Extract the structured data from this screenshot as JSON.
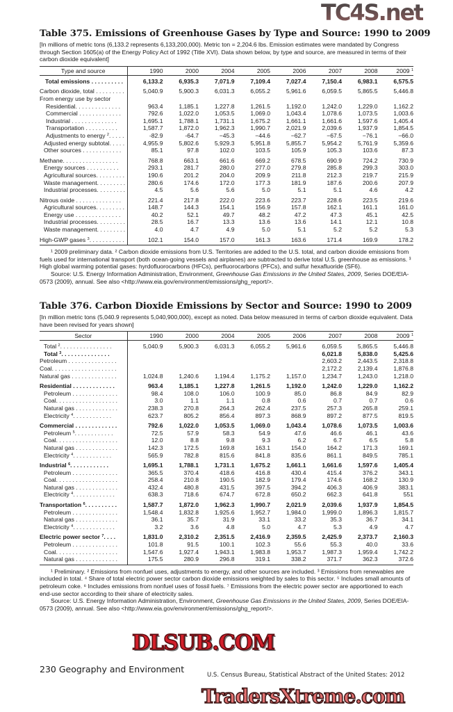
{
  "table375": {
    "title": "Table 375. Emissions of Greenhouse Gases by Type and Source: 1990 to 2009",
    "intro": "[In millions of metric tons (6,133.2 represents 6,133,200,000). Metric ton = 2,204.6 lbs. Emission estimates were mandated by Congress through Section 1605(a) of the Energy Policy Act of 1992 (Title XVI). Data shown below, by type and source, are measured in terms of their carbon dioxide equivalent]",
    "header_label": "Type and source",
    "years": [
      "1990",
      "2000",
      "2004",
      "2005",
      "2006",
      "2007",
      "2008",
      "2009"
    ],
    "year_note": "1",
    "rows": [
      {
        "label": "Total emissions . . . . . . . . . .",
        "sup": "",
        "bold": true,
        "indent": "in0b",
        "values": [
          "6,133.2",
          "6,935.3",
          "7,071.9",
          "7,109.4",
          "7,027.4",
          "7,150.4",
          "6,983.1",
          "6,575.5"
        ]
      },
      {
        "label": "Carbon dioxide, total . . . . . . . . .",
        "sup": "",
        "gap": true,
        "values": [
          "5,040.9",
          "5,900.3",
          "6,031.3",
          "6,055.2",
          "5,961.6",
          "6,059.5",
          "5,865.5",
          "5,446.8"
        ]
      },
      {
        "label": "From energy use by sector",
        "sup": "",
        "values": [
          "",
          "",
          "",
          "",
          "",
          "",
          "",
          ""
        ]
      },
      {
        "label": "Residential. . . . . . . . . . . . . .",
        "sup": "",
        "indent": "in2",
        "values": [
          "963.4",
          "1,185.1",
          "1,227.8",
          "1,261.5",
          "1,192.0",
          "1,242.0",
          "1,229.0",
          "1,162.2"
        ]
      },
      {
        "label": "Commercial . . . . . . . . . . . . .",
        "sup": "",
        "indent": "in2",
        "values": [
          "792.6",
          "1,022.0",
          "1,053.5",
          "1,069.0",
          "1,043.4",
          "1,078.6",
          "1,073.5",
          "1,003.6"
        ]
      },
      {
        "label": "Industrial . . . . . . . . . . . . . .",
        "sup": "",
        "indent": "in2",
        "values": [
          "1,695.1",
          "1,788.1",
          "1,731.1",
          "1,675.2",
          "1,661.1",
          "1,661.6",
          "1,597.6",
          "1,405.4"
        ]
      },
      {
        "label": "Transportation . . . . . . . . . .",
        "sup": "",
        "indent": "in2",
        "values": [
          "1,587.7",
          "1,872.0",
          "1,962.3",
          "1,990.7",
          "2,021.9",
          "2,039.6",
          "1,937.9",
          "1,854.5"
        ]
      },
      {
        "label": "Adjustments to energy",
        "sup": "2",
        "suffix": ". . . . .",
        "indent": "in2",
        "values": [
          "-82.9",
          "-64.7",
          "−45.3",
          "−44.6",
          "−62.7",
          "−67.5",
          "−76.1",
          "−66.0"
        ]
      },
      {
        "label": "Adjusted energy subtotal. . . . .",
        "sup": "",
        "indent": "in1",
        "values": [
          "4,955.9",
          "5,802.6",
          "5,929.3",
          "5,951.8",
          "5,855.7",
          "5,954.2",
          "5,761.9",
          "5,359.6"
        ]
      },
      {
        "label": "Other sources . . . . . . . . . . . .",
        "sup": "",
        "indent": "in1",
        "values": [
          "85.1",
          "97.8",
          "102.0",
          "103.5",
          "105.9",
          "105.3",
          "103.6",
          "87.3"
        ]
      },
      {
        "label": "Methane. . . . . . . . . . . . . . . . .",
        "sup": "",
        "gap": true,
        "values": [
          "768.8",
          "663.1",
          "661.6",
          "669.2",
          "678.5",
          "690.9",
          "724.2",
          "730.9"
        ]
      },
      {
        "label": "Energy sources . . . . . . . . . .",
        "sup": "",
        "indent": "in1",
        "values": [
          "293.1",
          "281.7",
          "280.0",
          "277.0",
          "279.8",
          "285.8",
          "299.3",
          "303.0"
        ]
      },
      {
        "label": "Agricultural sources. . . . . . . . .",
        "sup": "",
        "indent": "in1",
        "values": [
          "190.6",
          "201.2",
          "204.0",
          "209.9",
          "211.8",
          "212.3",
          "219.7",
          "215.9"
        ]
      },
      {
        "label": "Waste management. . . . . . . . .",
        "sup": "",
        "indent": "in1",
        "values": [
          "280.6",
          "174.6",
          "172.0",
          "177.3",
          "181.9",
          "187.6",
          "200.6",
          "207.9"
        ]
      },
      {
        "label": "Industrial processes. . . . . . . . .",
        "sup": "",
        "indent": "in1",
        "values": [
          "4.5",
          "5.6",
          "5.6",
          "5.0",
          "5.1",
          "5.1",
          "4.6",
          "4.2"
        ]
      },
      {
        "label": "Nitrous oxide . . . . . . . . . . . . . .",
        "sup": "",
        "gap": true,
        "values": [
          "221.4",
          "217.8",
          "222.0",
          "223.6",
          "223.7",
          "228.6",
          "223.5",
          "219.6"
        ]
      },
      {
        "label": "Agricultural sources. . . . . . . . .",
        "sup": "",
        "indent": "in1",
        "values": [
          "148.7",
          "144.3",
          "154.1",
          "156.9",
          "157.8",
          "162.1",
          "161.1",
          "161.0"
        ]
      },
      {
        "label": "Energy use . . . . . . . . . . . . . .",
        "sup": "",
        "indent": "in1",
        "values": [
          "40.2",
          "52.1",
          "49.7",
          "48.2",
          "47.2",
          "47.3",
          "45.1",
          "42.5"
        ]
      },
      {
        "label": "Industrial processes. . . . . . . . .",
        "sup": "",
        "indent": "in1",
        "values": [
          "28.5",
          "16.7",
          "13.3",
          "13.6",
          "13.6",
          "14.1",
          "12.1",
          "10.8"
        ]
      },
      {
        "label": "Waste management. . . . . . . . .",
        "sup": "",
        "indent": "in1",
        "values": [
          "4.0",
          "4.7",
          "4.9",
          "5.0",
          "5.1",
          "5.2",
          "5.2",
          "5.3"
        ]
      },
      {
        "label": "High-GWP gases",
        "sup": "3",
        "suffix": ". . . . . . . . . . .",
        "gap": true,
        "values": [
          "102.1",
          "154.0",
          "157.0",
          "161.3",
          "163.6",
          "171.4",
          "169.9",
          "178.2"
        ]
      }
    ],
    "footnotes": "¹ 2009 preliminary data. ² Carbon dioxide emissions from U.S. Territories are added to the U.S. total, and carbon dioxide emissions from fuels used for international  transport (both ocean-going vessels and airplanes) are subtracted to derive total U.S. greenhouse as emissions. ³ High global warming potential gases: hyrdofluorocarbons (HFCs), perfluorocarbons (PFCs), and sulfur hexafluoride (SF6).",
    "source_prefix": "Source: U.S. Energy Information Administration, Environment, ",
    "source_title": "Greenhouse Gas Emissions in the United States, 2009",
    "source_suffix": ", Series DOE/EIA-0573 (2009), annual. See also <http://www.eia.gov/environment/emissions/ghg_report/>."
  },
  "table376": {
    "title": "Table 376. Carbon Dioxide Emissions by Sector and Source: 1990 to 2009",
    "intro": "[In million metric tons (5,040.9 represents 5,040,900,000), except as noted. Data below measured in terms of carbon dioxide equivalent. Data have been revised for years shown]",
    "header_label": "Sector",
    "years": [
      "1990",
      "2000",
      "2004",
      "2005",
      "2006",
      "2007",
      "2008",
      "2009"
    ],
    "year_note": "1",
    "rows": [
      {
        "label": "Total",
        "sup": "2",
        "suffix": ". . . . . . . . . . . . . . . .",
        "indent": "in1",
        "values": [
          "5,040.9",
          "5,900.3",
          "6,031.3",
          "6,055.2",
          "5,961.6",
          "6,059.5",
          "5,865.5",
          "5,446.8"
        ]
      },
      {
        "label": "Total",
        "sup": "3",
        "suffix": ". . . . . . . . . . . . . . .",
        "bold": true,
        "indent": "in1",
        "values": [
          "",
          "",
          "",
          "",
          "",
          "6,021.8",
          "5,838.0",
          "5,425.6"
        ]
      },
      {
        "label": "Petroleum . . . . . . . . . . . . . . .",
        "sup": "",
        "values": [
          "",
          "",
          "",
          "",
          "",
          "2,603.2",
          "2,443.5",
          "2,318.8"
        ]
      },
      {
        "label": "Coal. . . . . . . . . . . . . . . . . . . .",
        "sup": "",
        "values": [
          "",
          "",
          "",
          "",
          "",
          "2,172.2",
          "2,139.4",
          "1,876.8"
        ]
      },
      {
        "label": "Natural gas . . . . . . . . . . . . . .",
        "sup": "",
        "values": [
          "1,024.8",
          "1,240.6",
          "1,194.4",
          "1,175.2",
          "1,157.0",
          "1,234.7",
          "1,243.0",
          "1,218.0"
        ]
      },
      {
        "label": "Residential . . . . . . . . . . . . .",
        "sup": "",
        "bold": true,
        "gap": true,
        "values": [
          "963.4",
          "1,185.1",
          "1,227.8",
          "1,261.5",
          "1,192.0",
          "1,242.0",
          "1,229.0",
          "1,162.2"
        ]
      },
      {
        "label": "Petroleum . . . . . . . . . . . . . .",
        "sup": "",
        "indent": "in1",
        "values": [
          "98.4",
          "108.0",
          "106.0",
          "100.9",
          "85.0",
          "86.8",
          "84.9",
          "82.9"
        ]
      },
      {
        "label": "Coal. . . . . . . . . . . . . . . . . . .",
        "sup": "",
        "indent": "in1",
        "values": [
          "3.0",
          "1.1",
          "1.1",
          "0.8",
          "0.6",
          "0.7",
          "0.7",
          "0.6"
        ]
      },
      {
        "label": "Natural gas . . . . . . . . . . . . .",
        "sup": "",
        "indent": "in1",
        "values": [
          "238.3",
          "270.8",
          "264.3",
          "262.4",
          "237.5",
          "257.3",
          "265.8",
          "259.1"
        ]
      },
      {
        "label": "Electricity",
        "sup": "4",
        "suffix": ". . . . . . . . . . . .",
        "indent": "in1",
        "values": [
          "623.7",
          "805.2",
          "856.4",
          "897.3",
          "868.9",
          "897.2",
          "877.5",
          "819.5"
        ]
      },
      {
        "label": "Commercial . . . . . . . . . . . . .",
        "sup": "",
        "bold": true,
        "gap": true,
        "values": [
          "792.6",
          "1,022.0",
          "1,053.5",
          "1,069.0",
          "1,043.4",
          "1,078.6",
          "1,073.5",
          "1,003.6"
        ]
      },
      {
        "label": "Petroleum",
        "sup": "5",
        "suffix": ". . . . . . . . . . . .",
        "indent": "in1",
        "values": [
          "72.5",
          "57.9",
          "58.3",
          "54.9",
          "47.6",
          "46.6",
          "46.1",
          "43.6"
        ]
      },
      {
        "label": "Coal. . . . . . . . . . . . . . . . . . .",
        "sup": "",
        "indent": "in1",
        "values": [
          "12.0",
          "8.8",
          "9.8",
          "9.3",
          "6.2",
          "6.7",
          "6.5",
          "5.8"
        ]
      },
      {
        "label": "Natural gas . . . . . . . . . . . . .",
        "sup": "",
        "indent": "in1",
        "values": [
          "142.3",
          "172.5",
          "169.8",
          "163.1",
          "154.0",
          "164.2",
          "171.3",
          "169.1"
        ]
      },
      {
        "label": "Electricity",
        "sup": "4",
        "suffix": ". . . . . . . . . . . .",
        "indent": "in1",
        "values": [
          "565.9",
          "782.8",
          "815.6",
          "841.8",
          "835.6",
          "861.1",
          "849.5",
          "785.1"
        ]
      },
      {
        "label": "Industrial",
        "sup": "6",
        "suffix": ". . . . . . . . . . . .",
        "bold": true,
        "gap": true,
        "values": [
          "1,695.1",
          "1,788.1",
          "1,731.1",
          "1,675.2",
          "1,661.1",
          "1,661.6",
          "1,597.6",
          "1,405.4"
        ]
      },
      {
        "label": "Petroleum . . . . . . . . . . . . . .",
        "sup": "",
        "indent": "in1",
        "values": [
          "365.5",
          "370.4",
          "418.6",
          "416.8",
          "430.4",
          "415.4",
          "376.2",
          "343.1"
        ]
      },
      {
        "label": "Coal. . . . . . . . . . . . . . . . . . .",
        "sup": "",
        "indent": "in1",
        "values": [
          "258.4",
          "210.8",
          "190.5",
          "182.9",
          "179.4",
          "174.6",
          "168.2",
          "130.9"
        ]
      },
      {
        "label": "Natural gas . . . . . . . . . . . . .",
        "sup": "",
        "indent": "in1",
        "values": [
          "432.4",
          "480.8",
          "431.5",
          "397.5",
          "394.2",
          "406.3",
          "406.9",
          "383.1"
        ]
      },
      {
        "label": "Electricity",
        "sup": "4",
        "suffix": ". . . . . . . . . . . . .",
        "indent": "in1",
        "values": [
          "638.3",
          "718.6",
          "674.7",
          "672.8",
          "650.2",
          "662.3",
          "641.8",
          "551"
        ]
      },
      {
        "label": "Transportation",
        "sup": "6",
        "suffix": ". . . . . . . . . .",
        "bold": true,
        "gap": true,
        "values": [
          "1,587.7",
          "1,872.0",
          "1,962.3",
          "1,990.7",
          "2,021.9",
          "2,039.6",
          "1,937.9",
          "1,854.5"
        ]
      },
      {
        "label": "Petroleum . . . . . . . . . . . . . .",
        "sup": "",
        "indent": "in1",
        "values": [
          "1,548.4",
          "1,832.8",
          "1,925.6",
          "1,952.7",
          "1,984.0",
          "1,999.0",
          "1,896.3",
          "1,815.7"
        ]
      },
      {
        "label": "Natural gas . . . . . . . . . . . . .",
        "sup": "",
        "indent": "in1",
        "values": [
          "36.1",
          "35.7",
          "31.9",
          "33.1",
          "33.2",
          "35.3",
          "36.7",
          "34.1"
        ]
      },
      {
        "label": "Electricity",
        "sup": "4",
        "suffix": ". . . . . . . . . . . . .",
        "indent": "in1",
        "values": [
          "3.2",
          "3.6",
          "4.8",
          "5.0",
          "4.7",
          "5.3",
          "4.9",
          "4.7"
        ]
      },
      {
        "label": "Electric power sector",
        "sup": "7",
        "suffix": ". . . .",
        "bold": true,
        "gap": true,
        "values": [
          "1,831.0",
          "2,310.2",
          "2,351.5",
          "2,416.9",
          "2,359.5",
          "2,425.9",
          "2,373.7",
          "2,160.3"
        ]
      },
      {
        "label": "Petroleum . . . . . . . . . . . . . .",
        "sup": "",
        "indent": "in1",
        "values": [
          "101.8",
          "91.5",
          "100.1",
          "102.3",
          "55.6",
          "55.3",
          "40.0",
          "33.6"
        ]
      },
      {
        "label": "Coal. . . . . . . . . . . . . . . . . . .",
        "sup": "",
        "indent": "in1",
        "values": [
          "1,547.6",
          "1,927.4",
          "1,943.1",
          "1,983.8",
          "1,953.7",
          "1,987.3",
          "1,959.4",
          "1,742.2"
        ]
      },
      {
        "label": "Natural gas . . . . . . . . . . . . .",
        "sup": "",
        "indent": "in1",
        "values": [
          "175.5",
          "280.9",
          "296.8",
          "319.1",
          "338.2",
          "371.7",
          "362.3",
          "372.6"
        ]
      }
    ],
    "footnotes": "¹ Preliminary. ² Emissions from nonfuel uses, adjustments to energy, and other sources are included. ³ Emissions from renewables are included in total. ⁴ Share of total electric power sector carbon dioxide emissions weighted by sales to this sector. ⁵ Includes small amounts of petroleum coke. ⁶ Includes emissions from nonfuel uses of fossil fuels. ⁷ Emissions from the electric power sector are apportioned to each end-use sector according to their share of electricity sales.",
    "source_prefix": "Source: U.S. Energy Information Administration, Environment, ",
    "source_title": "Greenhouse Gas Emissions in the United States, 2009",
    "source_suffix": ", Series DOE/EIA-0573 (2009), annual. See also <http://www.eia.gov/environment/emissions/ghg_report/>."
  },
  "footer": {
    "page": "230  Geography and Environment",
    "publication": "U.S. Census Bureau, Statistical Abstract of the United States: 2012"
  },
  "watermarks": [
    "TC4S.net",
    "DLSUB.COM",
    "TradersXtreme.com"
  ]
}
